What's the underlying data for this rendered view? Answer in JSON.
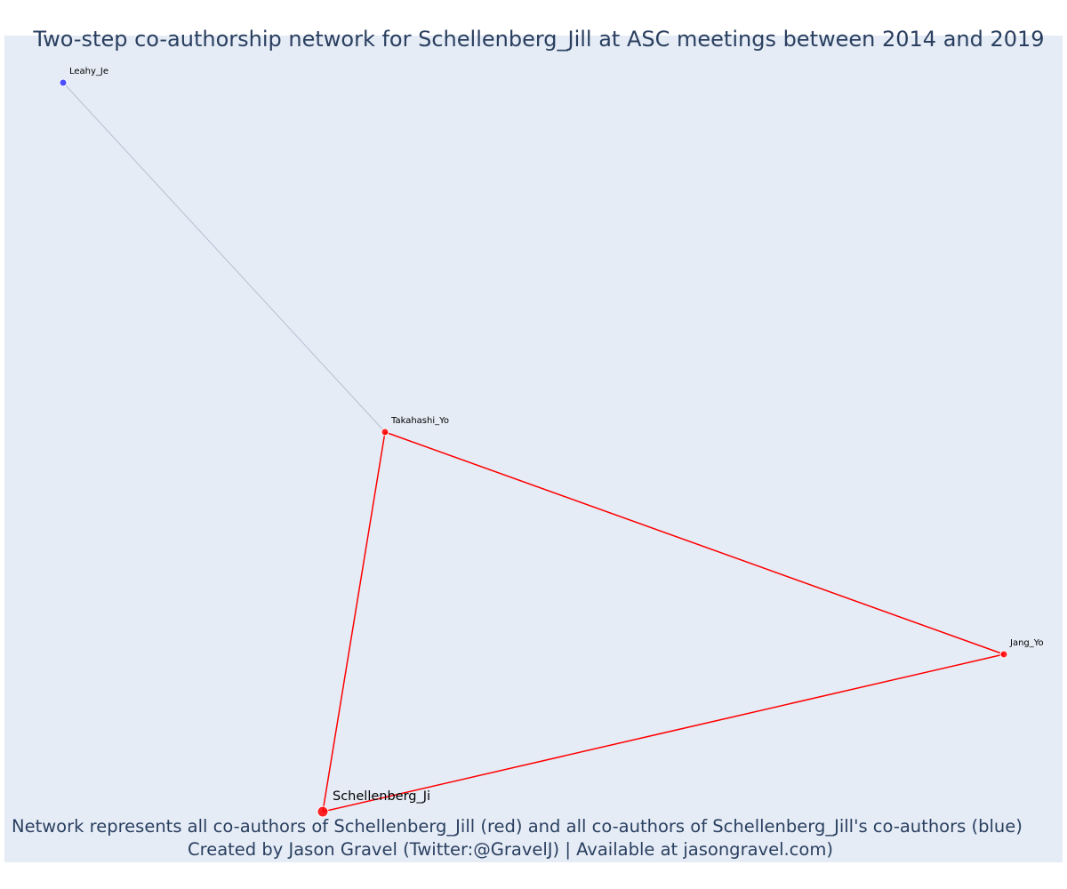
{
  "title": "Two-step co-authorship network for Schellenberg_Jill at ASC meetings between 2014 and 2019",
  "footer": {
    "line1": "Network represents all co-authors of Schellenberg_Jill (red) and all co-authors of Schellenberg_Jill's co-authors (blue)",
    "line2": "Created by Jason Gravel (Twitter:@GravelJ) | Available at jasongravel.com)"
  },
  "colors": {
    "background": "#e5ecf6",
    "first_step": "#ff0000",
    "second_step": "#3333ff",
    "second_step_edge": "#b8bfd0",
    "text": "#2a3f5f"
  },
  "nodes": [
    {
      "id": "schellenberg",
      "label": "Schellenberg_Ji",
      "group": "focal"
    },
    {
      "id": "takahashi",
      "label": "Takahashi_Yo",
      "group": "coauthor"
    },
    {
      "id": "jang",
      "label": "Jang_Yo",
      "group": "coauthor"
    },
    {
      "id": "leahy",
      "label": "Leahy_Je",
      "group": "second-step"
    }
  ],
  "edges": [
    {
      "source": "schellenberg",
      "target": "takahashi",
      "group": "coauthor"
    },
    {
      "source": "schellenberg",
      "target": "jang",
      "group": "coauthor"
    },
    {
      "source": "takahashi",
      "target": "jang",
      "group": "coauthor"
    },
    {
      "source": "takahashi",
      "target": "leahy",
      "group": "second-step"
    }
  ]
}
